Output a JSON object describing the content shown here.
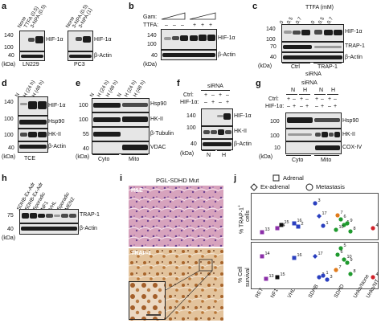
{
  "panels": {
    "a": {
      "label": "a",
      "lanes": [
        "None",
        "TTFA (0.5)",
        "3-NPA (0.5)",
        "3-NPA (1)"
      ],
      "markers": [
        "140",
        "100",
        "40"
      ],
      "kda": "(kDa)",
      "rows": [
        "HIF-1α",
        "β-Actin"
      ],
      "cell_lines": [
        "LN229",
        "PC3"
      ]
    },
    "b": {
      "label": "b",
      "gam": "Gam:",
      "ttfa": "TTFA:",
      "ttfa_signs": [
        "–",
        "–",
        "–",
        "+",
        "+",
        "+"
      ],
      "markers": [
        "140",
        "100",
        "40"
      ],
      "kda": "(kDa)",
      "rows": [
        "HIF-1α",
        "β-Actin"
      ]
    },
    "c": {
      "label": "c",
      "title": "TTFA (mM)",
      "conc": [
        "0",
        "0.5",
        "0.7",
        "0",
        "0.5",
        "0.7"
      ],
      "markers": [
        "140",
        "100",
        "70",
        "40"
      ],
      "kda": "(kDa)",
      "rows": [
        "HIF-1α",
        "TRAP-1",
        "β-Actin"
      ],
      "groups": [
        "Ctrl",
        "TRAP-1"
      ],
      "sirna": "siRNA"
    },
    "d": {
      "label": "d",
      "lanes": [
        "N",
        "H (24 h)",
        "H (48 h)"
      ],
      "markers": [
        "140",
        "100",
        "100",
        "40"
      ],
      "kda": "(kDa)",
      "rows": [
        "HIF-1α",
        "Hsp90",
        "HK-II",
        "β-Actin"
      ],
      "footer": "TCE"
    },
    "e": {
      "label": "e",
      "lanes": [
        "N",
        "H (24 h)",
        "H (48 h)",
        "N",
        "H (24 h)",
        "H (48 h)"
      ],
      "markers": [
        "100",
        "100",
        "55",
        "40"
      ],
      "kda": "(kDa)",
      "rows": [
        "Hsp90",
        "HK-II",
        "β-Tubulin",
        "VDAC"
      ],
      "groups": [
        "Cyto",
        "Mito"
      ]
    },
    "f": {
      "label": "f",
      "sirna": "siRNA",
      "ctrl": "Ctrl:",
      "hif": "HIF-1α:",
      "ctrl_signs": [
        "+",
        "–",
        "+",
        "–"
      ],
      "hif_signs": [
        "–",
        "+",
        "–",
        "+"
      ],
      "markers": [
        "140",
        "100",
        "40"
      ],
      "kda": "(kDa)",
      "rows": [
        "HIF-1α",
        "HK-II",
        "β-Actin"
      ],
      "groups": [
        "N",
        "H"
      ]
    },
    "g": {
      "label": "g",
      "sirna": "siRNA",
      "cond": [
        "N",
        "H",
        "N",
        "H"
      ],
      "ctrl": "Ctrl:",
      "hif": "HIF-1α:",
      "ctrl_signs": [
        "+",
        "–",
        "+",
        "–",
        "+",
        "–",
        "+",
        "–"
      ],
      "hif_signs": [
        "–",
        "+",
        "–",
        "+",
        "–",
        "+",
        "–",
        "+"
      ],
      "markers": [
        "100",
        "100",
        "10"
      ],
      "kda": "(kDa)",
      "rows": [
        "Hsp90",
        "HK-II",
        "COX-IV"
      ],
      "groups": [
        "Cyto",
        "Mito"
      ]
    },
    "h": {
      "label": "h",
      "lanes": [
        "SDHB-Ex-Adr",
        "SDHB-Ex-Adr",
        "Sporadic",
        "NF1",
        "VHL",
        "Sporadic",
        "MEN2"
      ],
      "markers": [
        "75",
        "40"
      ],
      "kda": "(kDa)",
      "rows": [
        "TRAP-1",
        "β-Actin"
      ]
    },
    "i": {
      "label": "i",
      "title": "PGL-SDHD Mut",
      "top_label": "H&E",
      "bottom_label": "TRAP-1"
    },
    "j": {
      "label": "j",
      "legend": [
        "Adrenal",
        "Ex-adrenal",
        "Metastasis"
      ],
      "top_ylabel_line1": "% TRAP-1",
      "top_ylabel_sup": "+",
      "top_ylabel_line2": "cells",
      "bottom_ylabel_line1": "% Cell",
      "bottom_ylabel_line2": "survival",
      "categories": [
        "RET",
        "NF1",
        "VHL",
        "SDHB",
        "SDHD",
        "Unkn/None",
        "Unkn/NT"
      ]
    }
  },
  "chart_data": {
    "type": "scatter",
    "categories": [
      "RET",
      "NF1",
      "VHL",
      "SDHB",
      "SDHD",
      "Unkn/None",
      "Unkn/NT"
    ],
    "series": [
      {
        "panel": "top",
        "category": "RET",
        "points": [
          {
            "label": "13",
            "marker": "square",
            "color": "#8b2fa8"
          }
        ]
      },
      {
        "panel": "top",
        "category": "NF1",
        "points": [
          {
            "label": "14",
            "marker": "square",
            "color": "#8b2fa8"
          },
          {
            "label": "15",
            "marker": "square",
            "color": "#111111"
          }
        ]
      },
      {
        "panel": "top",
        "category": "VHL",
        "points": [
          {
            "label": "16",
            "marker": "square",
            "color": "#2a3fbf"
          },
          {
            "label": "2",
            "marker": "square",
            "color": "#2a3fbf"
          }
        ]
      },
      {
        "panel": "top",
        "category": "SDHB",
        "points": [
          {
            "label": "3",
            "marker": "circle",
            "color": "#2a3fbf"
          },
          {
            "label": "17",
            "marker": "diamond",
            "color": "#2a3fbf"
          },
          {
            "label": "1",
            "marker": "circle",
            "color": "#2a3fbf"
          }
        ]
      },
      {
        "panel": "top",
        "category": "SDHD",
        "points": [
          {
            "label": "6",
            "marker": "circle",
            "color": "#1f9a2e"
          },
          {
            "label": "7",
            "marker": "circle",
            "color": "#e07a1a"
          },
          {
            "label": "5",
            "marker": "circle",
            "color": "#1f9a2e"
          },
          {
            "label": "9",
            "marker": "circle",
            "color": "#1f9a2e"
          },
          {
            "label": "10",
            "marker": "circle",
            "color": "#1f9a2e"
          },
          {
            "label": "8",
            "marker": "circle",
            "color": "#1f9a2e"
          }
        ]
      },
      {
        "panel": "top",
        "category": "Unkn/NT",
        "points": [
          {
            "label": "4",
            "marker": "circle",
            "color": "#d0222a"
          }
        ]
      },
      {
        "panel": "bottom",
        "category": "RET",
        "points": [
          {
            "label": "14",
            "marker": "square",
            "color": "#8b2fa8"
          },
          {
            "label": "13",
            "marker": "square",
            "color": "#8b2fa8"
          }
        ]
      },
      {
        "panel": "bottom",
        "category": "NF1",
        "points": [
          {
            "label": "15",
            "marker": "square",
            "color": "#111111"
          }
        ]
      },
      {
        "panel": "bottom",
        "category": "VHL",
        "points": [
          {
            "label": "16",
            "marker": "square",
            "color": "#2a3fbf"
          }
        ]
      },
      {
        "panel": "bottom",
        "category": "SDHB",
        "points": [
          {
            "label": "17",
            "marker": "diamond",
            "color": "#2a3fbf"
          },
          {
            "label": "2",
            "marker": "circle",
            "color": "#2a3fbf"
          },
          {
            "label": "1",
            "marker": "circle",
            "color": "#2a3fbf"
          },
          {
            "label": "3",
            "marker": "circle",
            "color": "#2a3fbf"
          }
        ]
      },
      {
        "panel": "bottom",
        "category": "SDHD",
        "points": [
          {
            "label": "5",
            "marker": "circle",
            "color": "#1f9a2e"
          },
          {
            "label": "6",
            "marker": "circle",
            "color": "#1f9a2e"
          },
          {
            "label": "10",
            "marker": "circle",
            "color": "#1f9a2e"
          },
          {
            "label": "9",
            "marker": "circle",
            "color": "#1f9a2e"
          },
          {
            "label": "7",
            "marker": "circle",
            "color": "#e07a1a"
          },
          {
            "label": "8",
            "marker": "circle",
            "color": "#1f9a2e"
          }
        ]
      },
      {
        "panel": "bottom",
        "category": "Unkn/NT",
        "points": [
          {
            "label": "4",
            "marker": "circle",
            "color": "#d0222a"
          }
        ]
      }
    ]
  }
}
